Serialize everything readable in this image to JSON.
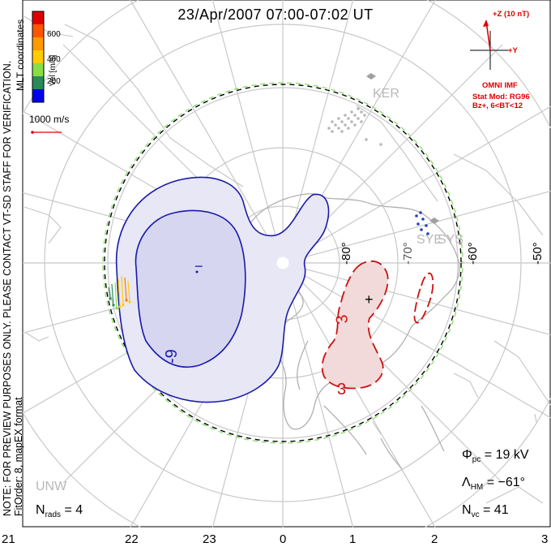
{
  "title": "23/Apr/2007 07:00-07:02 UT",
  "side_note": {
    "line1": "NOTE: FOR PREVIEW PURPOSES ONLY. PLEASE CONTACT VT-SD STAFF FOR VERIFICATION.",
    "line2": "FitOrder: 8, mapEX format"
  },
  "coordinates_label": "MLT coordinates",
  "velocity_scale": {
    "label": "Vel [m/s]",
    "ticks": [
      "600",
      "400",
      "200"
    ],
    "colors": [
      "#e00000",
      "#ff7700",
      "#ffcc00",
      "#88dd44",
      "#2a8a5a",
      "#2244bb",
      "#0000ee"
    ]
  },
  "vector_scale": {
    "label": "1000 m/s",
    "color": "#e00000"
  },
  "imf": {
    "z_label": "+Z (10 nT)",
    "y_label": "+Y",
    "source": "OMNI IMF",
    "model": "Stat Mod: RG96",
    "condition": "Bz+, 6<BT<12",
    "color": "#e00000"
  },
  "stats": {
    "phi_pc_symbol": "Φ",
    "phi_pc_sub": "pc",
    "phi_pc_value": "= 19 kV",
    "lambda_hm_symbol": "Λ",
    "lambda_hm_sub": "HM",
    "lambda_hm_value": "= −61°",
    "n_vc_symbol": "N",
    "n_vc_sub": "vc",
    "n_vc_value": "= 41",
    "n_rads_symbol": "N",
    "n_rads_sub": "rads",
    "n_rads_value": "= 4"
  },
  "radars": {
    "ker": "KER",
    "sys": "SYS",
    "sye": "SYE",
    "unw": "UNW"
  },
  "latitude_labels": [
    "-80°",
    "-70°",
    "-60°",
    "-50°"
  ],
  "mlt_ticks": [
    "21",
    "22",
    "23",
    "0",
    "1",
    "2",
    "3"
  ],
  "contours": {
    "negative_label": "-9",
    "negative_center": "−",
    "positive_label_1": "3",
    "positive_label_2": "3",
    "positive_center": "+",
    "negative_color": "#1a1aaa",
    "positive_color": "#cc1111"
  }
}
